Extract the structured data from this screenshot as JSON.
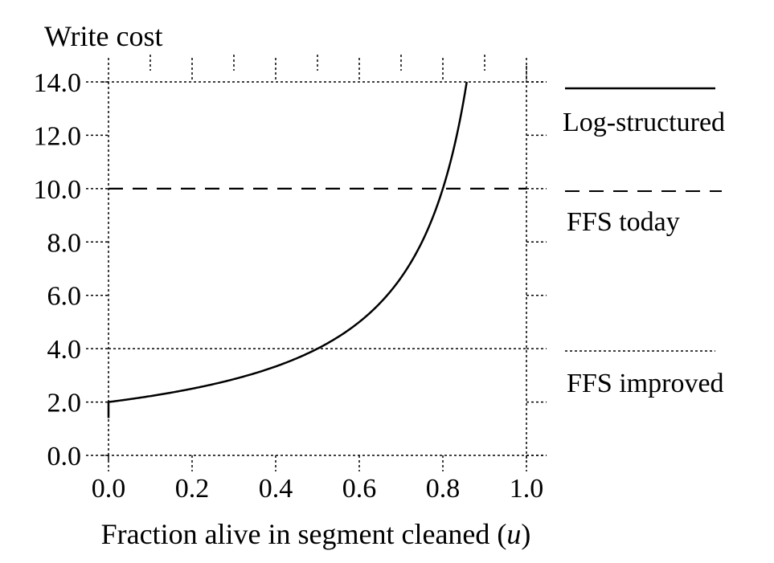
{
  "chart_data": {
    "type": "line",
    "ylabel": "Write cost",
    "xlabel": "Fraction alive in segment cleaned (",
    "xlabel_var": "u",
    "xlabel_close": ")",
    "xlim": [
      0.0,
      1.0
    ],
    "ylim": [
      0.0,
      14.0
    ],
    "x_ticks": [
      0.0,
      0.2,
      0.4,
      0.6,
      0.8,
      1.0
    ],
    "x_tick_labels": [
      "0.0",
      "0.2",
      "0.4",
      "0.6",
      "0.8",
      "1.0"
    ],
    "y_ticks": [
      0,
      2,
      4,
      6,
      8,
      10,
      12,
      14
    ],
    "y_tick_labels": [
      "0.0",
      "2.0",
      "4.0",
      "6.0",
      "8.0",
      "10.0",
      "12.0",
      "14.0"
    ],
    "grid": false,
    "series": [
      {
        "name": "Log-structured",
        "style": "solid",
        "formula": "2/(1-u)",
        "x": [
          0.0,
          0.1,
          0.2,
          0.3,
          0.4,
          0.5,
          0.6,
          0.7,
          0.75,
          0.8,
          0.83,
          0.857
        ],
        "values": [
          2.0,
          2.22,
          2.5,
          2.86,
          3.33,
          4.0,
          5.0,
          6.67,
          8.0,
          10.0,
          11.76,
          14.0
        ]
      },
      {
        "name": "FFS today",
        "style": "dashed",
        "x": [
          0.0,
          1.0
        ],
        "values": [
          10.0,
          10.0
        ]
      },
      {
        "name": "FFS improved",
        "style": "dotted",
        "x": [
          0.0,
          1.0
        ],
        "values": [
          4.0,
          4.0
        ]
      }
    ],
    "legend_position": "right"
  }
}
